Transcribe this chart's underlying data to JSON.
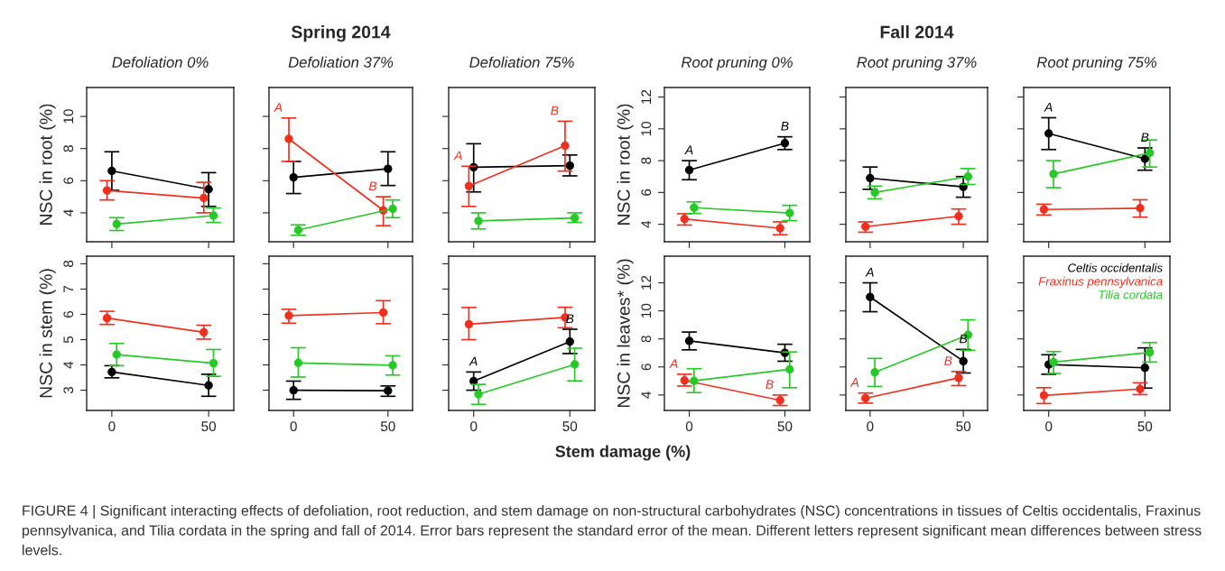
{
  "chart_data": [
    {
      "type": "line",
      "title": "Defoliation 0%",
      "ylabel": "NSC in root (%)",
      "marker": "circle",
      "xlim": [
        -13,
        63
      ],
      "xticks": [
        0,
        50
      ],
      "ylim": [
        2.2,
        11.8
      ],
      "yticks": [
        4,
        6,
        8,
        10
      ],
      "tick_labels": "y",
      "series": [
        {
          "color": "#000000",
          "x": [
            0,
            50
          ],
          "values": [
            6.61,
            5.47
          ],
          "errors": [
            [
              5.4,
              7.8
            ],
            [
              4.4,
              6.5
            ]
          ]
        },
        {
          "color": "#f0301e",
          "x": [
            -2.5,
            47.5
          ],
          "values": [
            5.39,
            4.92
          ],
          "errors": [
            [
              4.8,
              6.0
            ],
            [
              4.0,
              5.9
            ]
          ]
        },
        {
          "color": "#26c926",
          "x": [
            2.5,
            52.5
          ],
          "values": [
            3.3,
            3.83
          ],
          "errors": [
            [
              2.9,
              3.7
            ],
            [
              3.4,
              4.3
            ]
          ]
        }
      ]
    },
    {
      "type": "line",
      "title": "Defoliation 37%",
      "annotations": [
        "Spring 2014"
      ],
      "marker": "circle",
      "xlim": [
        -13,
        63
      ],
      "xticks": [
        0,
        50
      ],
      "ylim": [
        2.2,
        11.8
      ],
      "yticks": [
        4,
        6,
        8,
        10
      ],
      "tick_labels": false,
      "series": [
        {
          "color": "#000000",
          "x": [
            0,
            50
          ],
          "values": [
            6.21,
            6.74
          ],
          "errors": [
            [
              5.2,
              7.2
            ],
            [
              5.7,
              7.8
            ]
          ]
        },
        {
          "color": "#f0301e",
          "x": [
            -2.5,
            47.5
          ],
          "values": [
            8.6,
            4.15
          ],
          "errors": [
            [
              7.2,
              9.9
            ],
            [
              3.2,
              5.0
            ]
          ],
          "value_labels": [
            "A",
            "B"
          ]
        },
        {
          "color": "#26c926",
          "x": [
            2.5,
            52.5
          ],
          "values": [
            2.93,
            4.25
          ],
          "errors": [
            [
              2.6,
              3.25
            ],
            [
              3.7,
              4.8
            ]
          ]
        }
      ]
    },
    {
      "type": "line",
      "title": "Defoliation 75%",
      "marker": "circle",
      "xlim": [
        -13,
        63
      ],
      "xticks": [
        0,
        50
      ],
      "ylim": [
        2.2,
        11.8
      ],
      "yticks": [
        4,
        6,
        8,
        10
      ],
      "tick_labels": false,
      "series": [
        {
          "color": "#000000",
          "x": [
            0,
            50
          ],
          "values": [
            6.84,
            6.94
          ],
          "errors": [
            [
              5.3,
              8.3
            ],
            [
              6.3,
              7.6
            ]
          ]
        },
        {
          "color": "#f0301e",
          "x": [
            -2.5,
            47.5
          ],
          "values": [
            5.67,
            8.18
          ],
          "errors": [
            [
              4.4,
              6.9
            ],
            [
              6.6,
              9.7
            ]
          ],
          "value_labels": [
            "A",
            "B"
          ]
        },
        {
          "color": "#26c926",
          "x": [
            2.5,
            52.5
          ],
          "values": [
            3.5,
            3.68
          ],
          "errors": [
            [
              3.0,
              4.0
            ],
            [
              3.4,
              4.0
            ]
          ]
        }
      ]
    },
    {
      "type": "line",
      "title": "Root pruning 0%",
      "ylabel": "NSC in root (%)",
      "marker": "circle",
      "xlim": [
        -13,
        63
      ],
      "xticks": [
        0,
        50
      ],
      "ylim": [
        2.9,
        12.6
      ],
      "yticks": [
        4,
        6,
        8,
        10,
        12
      ],
      "tick_labels": "y",
      "series": [
        {
          "color": "#000000",
          "x": [
            0,
            50
          ],
          "values": [
            7.41,
            9.1
          ],
          "errors": [
            [
              6.8,
              8.0
            ],
            [
              8.7,
              9.5
            ]
          ],
          "value_labels": [
            "A",
            "B"
          ]
        },
        {
          "color": "#f0301e",
          "x": [
            -2.5,
            47.5
          ],
          "values": [
            4.33,
            3.75
          ],
          "errors": [
            [
              3.95,
              4.66
            ],
            [
              3.34,
              4.15
            ]
          ]
        },
        {
          "color": "#26c926",
          "x": [
            2.5,
            52.5
          ],
          "values": [
            5.04,
            4.71
          ],
          "errors": [
            [
              4.68,
              5.41
            ],
            [
              4.23,
              5.19
            ]
          ]
        }
      ]
    },
    {
      "type": "line",
      "title": "Root pruning 37%",
      "annotations": [
        "Fall 2014"
      ],
      "marker": "circle",
      "xlim": [
        -13,
        63
      ],
      "xticks": [
        0,
        50
      ],
      "ylim": [
        2.9,
        12.6
      ],
      "yticks": [
        4,
        6,
        8,
        10,
        12
      ],
      "tick_labels": false,
      "series": [
        {
          "color": "#000000",
          "x": [
            0,
            50
          ],
          "values": [
            6.9,
            6.35
          ],
          "errors": [
            [
              6.2,
              7.6
            ],
            [
              5.7,
              7.0
            ]
          ]
        },
        {
          "color": "#f0301e",
          "x": [
            -2.5,
            47.5
          ],
          "values": [
            3.85,
            4.5
          ],
          "errors": [
            [
              3.5,
              4.15
            ],
            [
              4.0,
              4.96
            ]
          ]
        },
        {
          "color": "#26c926",
          "x": [
            2.5,
            52.5
          ],
          "values": [
            6.0,
            7.0
          ],
          "errors": [
            [
              5.6,
              6.4
            ],
            [
              6.5,
              7.5
            ]
          ]
        }
      ]
    },
    {
      "type": "line",
      "title": "Root pruning 75%",
      "marker": "circle",
      "xlim": [
        -13,
        63
      ],
      "xticks": [
        0,
        50
      ],
      "ylim": [
        2.9,
        12.6
      ],
      "yticks": [
        4,
        6,
        8,
        10,
        12
      ],
      "tick_labels": false,
      "series": [
        {
          "color": "#000000",
          "x": [
            0,
            50
          ],
          "values": [
            9.71,
            8.12
          ],
          "errors": [
            [
              8.7,
              10.7
            ],
            [
              7.4,
              8.8
            ]
          ],
          "value_labels": [
            "A",
            "B"
          ]
        },
        {
          "color": "#f0301e",
          "x": [
            -2.5,
            47.5
          ],
          "values": [
            4.93,
            5.01
          ],
          "errors": [
            [
              4.58,
              5.26
            ],
            [
              4.45,
              5.54
            ]
          ]
        },
        {
          "color": "#26c926",
          "x": [
            2.5,
            52.5
          ],
          "values": [
            7.16,
            8.49
          ],
          "errors": [
            [
              6.3,
              8.0
            ],
            [
              7.6,
              9.3
            ]
          ]
        }
      ]
    },
    {
      "type": "line",
      "ylabel": "NSC in stem (%)",
      "marker": "circle",
      "xlim": [
        -13,
        63
      ],
      "xticks": [
        0,
        50
      ],
      "ylim": [
        2.2,
        8.3
      ],
      "yticks": [
        3,
        4,
        5,
        6,
        7,
        8
      ],
      "series": [
        {
          "color": "#000000",
          "x": [
            0,
            50
          ],
          "values": [
            3.72,
            3.19
          ],
          "errors": [
            [
              3.49,
              3.97
            ],
            [
              2.76,
              3.63
            ]
          ]
        },
        {
          "color": "#f0301e",
          "x": [
            -2.5,
            47.5
          ],
          "values": [
            5.85,
            5.29
          ],
          "errors": [
            [
              5.6,
              6.12
            ],
            [
              5.02,
              5.57
            ]
          ]
        },
        {
          "color": "#26c926",
          "x": [
            2.5,
            52.5
          ],
          "values": [
            4.41,
            4.07
          ],
          "errors": [
            [
              3.97,
              4.85
            ],
            [
              3.55,
              4.61
            ]
          ]
        }
      ]
    },
    {
      "type": "line",
      "marker": "circle",
      "xlim": [
        -13,
        63
      ],
      "xticks": [
        0,
        50
      ],
      "ylim": [
        2.2,
        8.3
      ],
      "yticks": [
        3,
        4,
        5,
        6,
        7,
        8
      ],
      "tick_labels": "x",
      "series": [
        {
          "color": "#000000",
          "x": [
            0,
            50
          ],
          "values": [
            3.0,
            2.98
          ],
          "errors": [
            [
              2.64,
              3.36
            ],
            [
              2.76,
              3.17
            ]
          ]
        },
        {
          "color": "#f0301e",
          "x": [
            -2.5,
            47.5
          ],
          "values": [
            5.95,
            6.07
          ],
          "errors": [
            [
              5.65,
              6.2
            ],
            [
              5.63,
              6.54
            ]
          ]
        },
        {
          "color": "#26c926",
          "x": [
            2.5,
            52.5
          ],
          "values": [
            4.08,
            3.99
          ],
          "errors": [
            [
              3.52,
              4.68
            ],
            [
              3.6,
              4.36
            ]
          ]
        }
      ]
    },
    {
      "type": "line",
      "marker": "circle",
      "xlim": [
        -13,
        63
      ],
      "xticks": [
        0,
        50
      ],
      "ylim": [
        2.2,
        8.3
      ],
      "yticks": [
        3,
        4,
        5,
        6,
        7,
        8
      ],
      "tick_labels": "x",
      "series": [
        {
          "color": "#000000",
          "x": [
            0,
            50
          ],
          "values": [
            3.36,
            4.92
          ],
          "errors": [
            [
              3.0,
              3.72
            ],
            [
              4.45,
              5.41
            ]
          ],
          "value_labels": [
            "A",
            "B"
          ]
        },
        {
          "color": "#f0301e",
          "x": [
            -2.5,
            47.5
          ],
          "values": [
            5.61,
            5.88
          ],
          "errors": [
            [
              5.0,
              6.27
            ],
            [
              5.47,
              6.28
            ]
          ]
        },
        {
          "color": "#26c926",
          "x": [
            2.5,
            52.5
          ],
          "values": [
            2.84,
            4.02
          ],
          "errors": [
            [
              2.44,
              3.23
            ],
            [
              3.37,
              4.66
            ]
          ]
        }
      ]
    },
    {
      "type": "line",
      "ylabel": "NSC in leaves* (%)",
      "xlabel": "Stem damage (%)",
      "marker": "circle",
      "xlim": [
        -13,
        63
      ],
      "xticks": [
        0,
        50
      ],
      "ylim": [
        2.9,
        13.9
      ],
      "yticks": [
        4,
        6,
        8,
        10,
        12
      ],
      "series": [
        {
          "color": "#000000",
          "x": [
            0,
            50
          ],
          "values": [
            7.86,
            7.01
          ],
          "errors": [
            [
              7.22,
              8.49
            ],
            [
              6.41,
              7.62
            ]
          ]
        },
        {
          "color": "#f0301e",
          "x": [
            -2.5,
            47.5
          ],
          "values": [
            5.04,
            3.62
          ],
          "errors": [
            [
              4.64,
              5.48
            ],
            [
              3.25,
              4.0
            ]
          ],
          "value_labels": [
            "A",
            "B"
          ]
        },
        {
          "color": "#26c926",
          "x": [
            2.5,
            52.5
          ],
          "values": [
            5.01,
            5.83
          ],
          "errors": [
            [
              4.17,
              5.88
            ],
            [
              4.52,
              7.07
            ]
          ]
        }
      ]
    },
    {
      "type": "line",
      "marker": "circle",
      "xlim": [
        -13,
        63
      ],
      "xticks": [
        0,
        50
      ],
      "ylim": [
        2.9,
        13.9
      ],
      "yticks": [
        4,
        6,
        8,
        10,
        12
      ],
      "tick_labels": "x",
      "series": [
        {
          "color": "#000000",
          "x": [
            0,
            50
          ],
          "values": [
            10.99,
            6.41
          ],
          "errors": [
            [
              9.94,
              12.0
            ],
            [
              5.57,
              7.25
            ]
          ],
          "value_labels": [
            "A",
            "B"
          ]
        },
        {
          "color": "#f0301e",
          "x": [
            -2.5,
            47.5
          ],
          "values": [
            3.77,
            5.22
          ],
          "errors": [
            [
              3.42,
              4.14
            ],
            [
              4.67,
              5.68
            ]
          ],
          "value_labels": [
            "A",
            "B"
          ]
        },
        {
          "color": "#26c926",
          "x": [
            2.5,
            52.5
          ],
          "values": [
            5.62,
            8.29
          ],
          "errors": [
            [
              4.61,
              6.61
            ],
            [
              7.19,
              9.36
            ]
          ]
        }
      ]
    },
    {
      "type": "line",
      "marker": "circle",
      "legend": "top right",
      "annotations": [
        "FIGURE 4 | Significant interacting effects of defoliation, root reduction, and stem damage on non-structural carbohydrates (NSC) concentrations in tissues of Celtis occidentalis, Fraxinus pennsylvanica, and Tilia cordata in the spring and fall of 2014. Error bars represent the standard error of the mean. Different letters represent significant mean differences between stress levels."
      ],
      "xlim": [
        -13,
        63
      ],
      "xticks": [
        0,
        50
      ],
      "ylim": [
        2.9,
        13.9
      ],
      "yticks": [
        4,
        6,
        8,
        10,
        12
      ],
      "tick_labels": "x",
      "series": [
        {
          "name": "Celtis occidentalis",
          "color": "#000000",
          "x": [
            0,
            50
          ],
          "values": [
            6.17,
            5.94
          ],
          "errors": [
            [
              5.48,
              6.87
            ],
            [
              4.49,
              7.36
            ]
          ]
        },
        {
          "name": "Fraxinus pennsylvanica",
          "color": "#f0301e",
          "x": [
            -2.5,
            47.5
          ],
          "values": [
            3.97,
            4.43
          ],
          "errors": [
            [
              3.39,
              4.52
            ],
            [
              4.03,
              4.87
            ]
          ]
        },
        {
          "name": "Tilia cordata",
          "color": "#26c926",
          "x": [
            2.5,
            52.5
          ],
          "values": [
            6.35,
            7.04
          ],
          "errors": [
            [
              5.54,
              7.1
            ],
            [
              6.35,
              7.74
            ]
          ]
        }
      ]
    }
  ]
}
